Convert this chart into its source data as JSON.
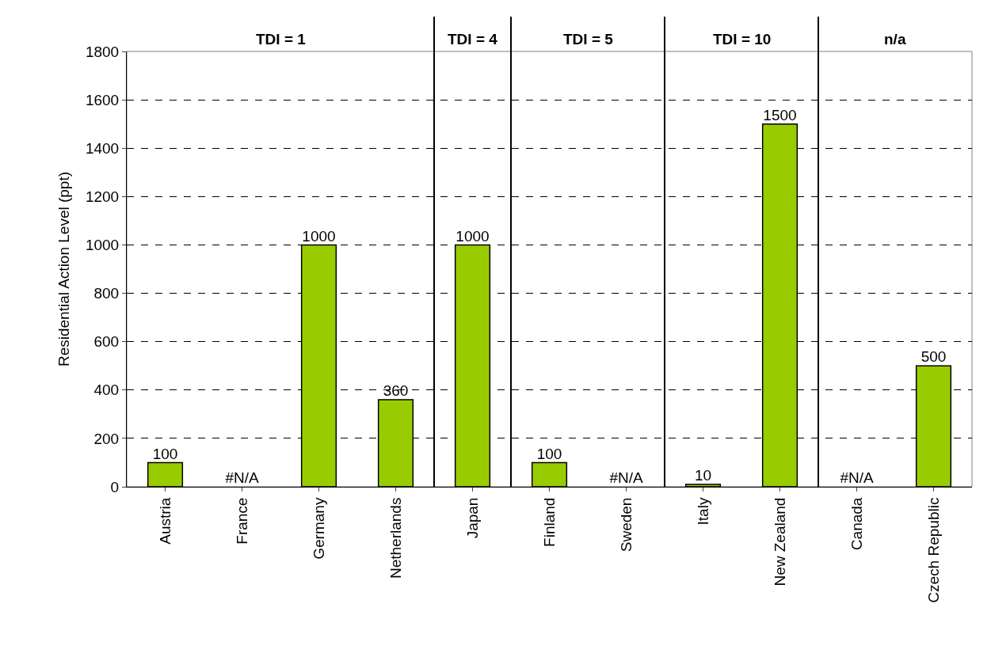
{
  "chart_data": {
    "type": "bar",
    "ylabel": "Residential Action Level (ppt)",
    "categories": [
      "Austria",
      "France",
      "Germany",
      "Netherlands",
      "Japan",
      "Finland",
      "Sweden",
      "Italy",
      "New Zealand",
      "Canada",
      "Czech Republic"
    ],
    "values": [
      100,
      null,
      1000,
      360,
      1000,
      100,
      null,
      10,
      1500,
      null,
      500
    ],
    "value_labels": [
      "100",
      "#N/A",
      "1000",
      "360",
      "1000",
      "100",
      "#N/A",
      "10",
      "1500",
      "#N/A",
      "500"
    ],
    "color": "#99cc00",
    "ylim": [
      0,
      1800
    ],
    "yticks": [
      0,
      200,
      400,
      600,
      800,
      1000,
      1200,
      1400,
      1600,
      1800
    ],
    "grid": "y",
    "annotations": [
      "TDI = 1",
      "TDI = 4",
      "TDI = 5",
      "TDI = 10",
      "n/a"
    ]
  }
}
